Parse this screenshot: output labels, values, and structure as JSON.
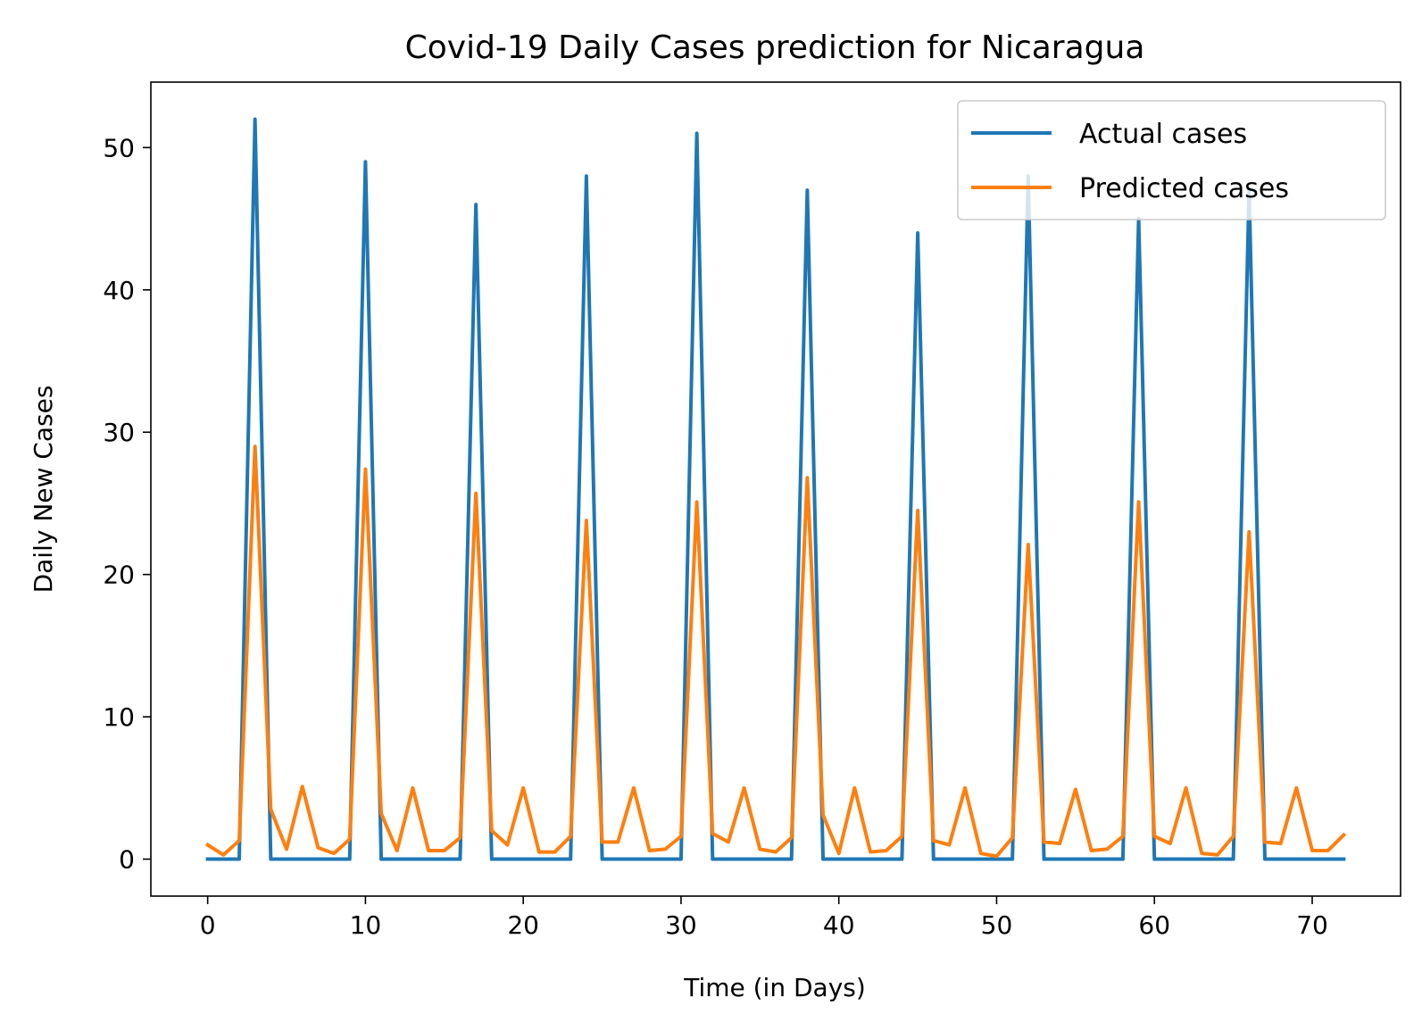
{
  "chart_data": {
    "type": "line",
    "title": "Covid-19 Daily Cases prediction for Nicaragua",
    "xlabel": "Time (in Days)",
    "ylabel": "Daily New Cases",
    "xlim": [
      -3.6,
      75.6
    ],
    "ylim": [
      -2.6,
      54.6
    ],
    "xticks": [
      0,
      10,
      20,
      30,
      40,
      50,
      60,
      70
    ],
    "yticks": [
      0,
      10,
      20,
      30,
      40,
      50
    ],
    "grid": false,
    "legend": "top-right",
    "x": [
      0,
      1,
      2,
      3,
      4,
      5,
      6,
      7,
      8,
      9,
      10,
      11,
      12,
      13,
      14,
      15,
      16,
      17,
      18,
      19,
      20,
      21,
      22,
      23,
      24,
      25,
      26,
      27,
      28,
      29,
      30,
      31,
      32,
      33,
      34,
      35,
      36,
      37,
      38,
      39,
      40,
      41,
      42,
      43,
      44,
      45,
      46,
      47,
      48,
      49,
      50,
      51,
      52,
      53,
      54,
      55,
      56,
      57,
      58,
      59,
      60,
      61,
      62,
      63,
      64,
      65,
      66,
      67,
      68,
      69,
      70,
      71,
      72
    ],
    "series": [
      {
        "name": "Actual cases",
        "color": "#1f77b4",
        "values": [
          0,
          0,
          0,
          52,
          0,
          0,
          0,
          0,
          0,
          0,
          49,
          0,
          0,
          0,
          0,
          0,
          0,
          46,
          0,
          0,
          0,
          0,
          0,
          0,
          48,
          0,
          0,
          0,
          0,
          0,
          0,
          51,
          0,
          0,
          0,
          0,
          0,
          0,
          47,
          0,
          0,
          0,
          0,
          0,
          0,
          44,
          0,
          0,
          0,
          0,
          0,
          0,
          48,
          0,
          0,
          0,
          0,
          0,
          0,
          45,
          0,
          0,
          0,
          0,
          0,
          0,
          47,
          0,
          0,
          0,
          0,
          0,
          0
        ]
      },
      {
        "name": "Predicted cases",
        "color": "#ff7f0e",
        "values": [
          1.0,
          0.3,
          1.3,
          29.0,
          3.5,
          0.7,
          5.1,
          0.8,
          0.4,
          1.4,
          27.4,
          3.2,
          0.6,
          5.0,
          0.6,
          0.6,
          1.5,
          25.7,
          2.0,
          1.0,
          5.0,
          0.5,
          0.5,
          1.6,
          23.8,
          1.2,
          1.2,
          5.0,
          0.6,
          0.7,
          1.6,
          25.1,
          1.8,
          1.2,
          5.0,
          0.7,
          0.5,
          1.5,
          26.8,
          3.1,
          0.4,
          5.0,
          0.5,
          0.6,
          1.6,
          24.5,
          1.3,
          1.0,
          5.0,
          0.4,
          0.2,
          1.5,
          22.1,
          1.2,
          1.1,
          4.9,
          0.6,
          0.7,
          1.6,
          25.1,
          1.6,
          1.1,
          5.0,
          0.4,
          0.3,
          1.6,
          23.0,
          1.2,
          1.1,
          5.0,
          0.6,
          0.6,
          1.7
        ]
      }
    ]
  }
}
